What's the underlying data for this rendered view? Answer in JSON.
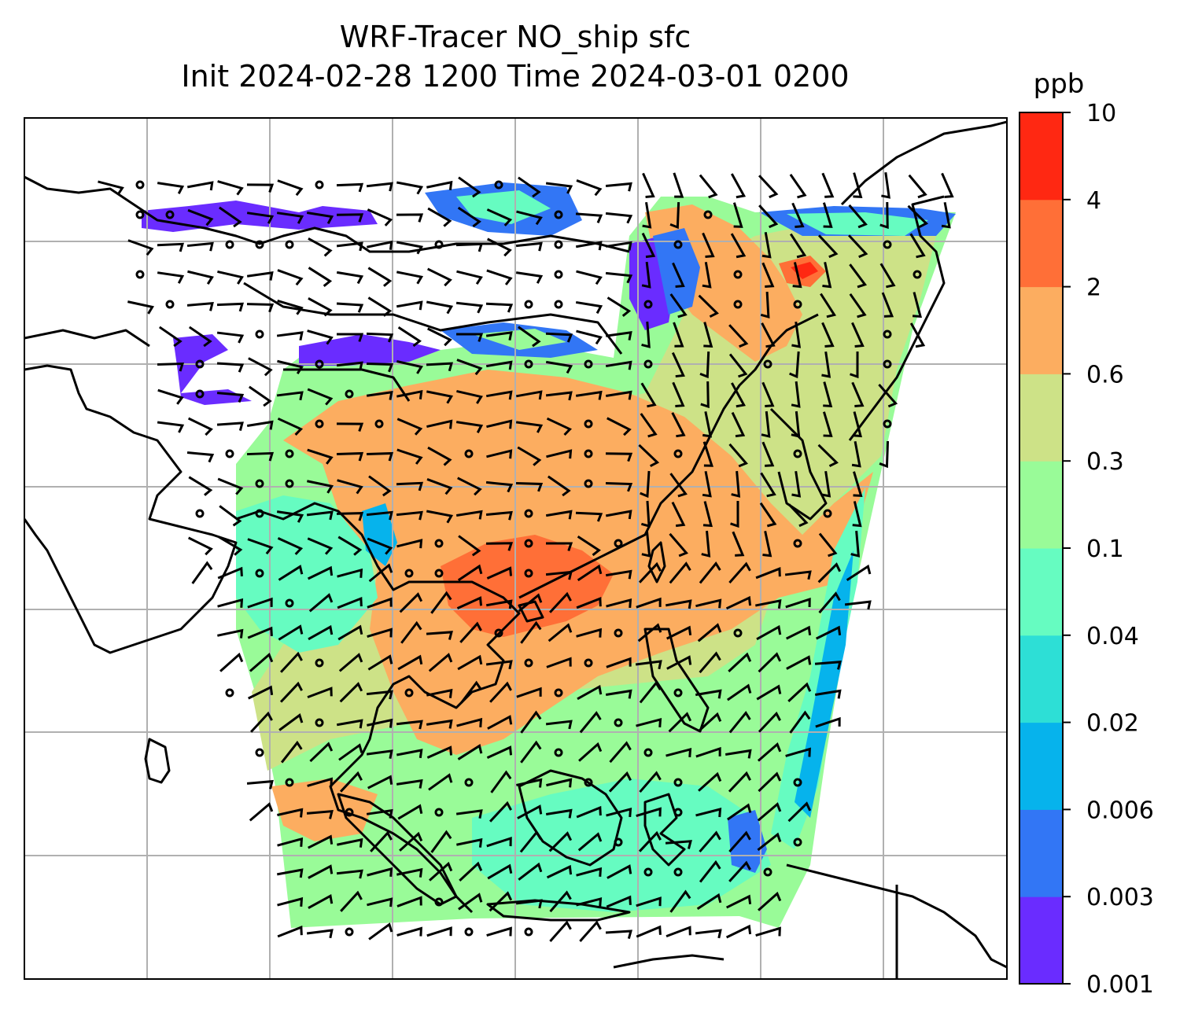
{
  "title": {
    "line1": "WRF-Tracer NO_ship sfc",
    "line2": "Init 2024-02-28 1200 Time 2024-03-01 0200"
  },
  "colorbar": {
    "unit": "ppb",
    "levels": [
      "0.001",
      "0.003",
      "0.006",
      "0.02",
      "0.04",
      "0.1",
      "0.3",
      "0.6",
      "2",
      "4",
      "10"
    ],
    "colors": [
      "#6a2cff",
      "#3276f5",
      "#06b3ec",
      "#2ddfd6",
      "#66fcc1",
      "#99fb98",
      "#cde287",
      "#fcad60",
      "#ff6f37",
      "#ff2812"
    ]
  },
  "map": {
    "gridlines": true,
    "background": "#ffffff",
    "coastline_color": "#000000",
    "grid_color": "#b0b0b0"
  }
}
